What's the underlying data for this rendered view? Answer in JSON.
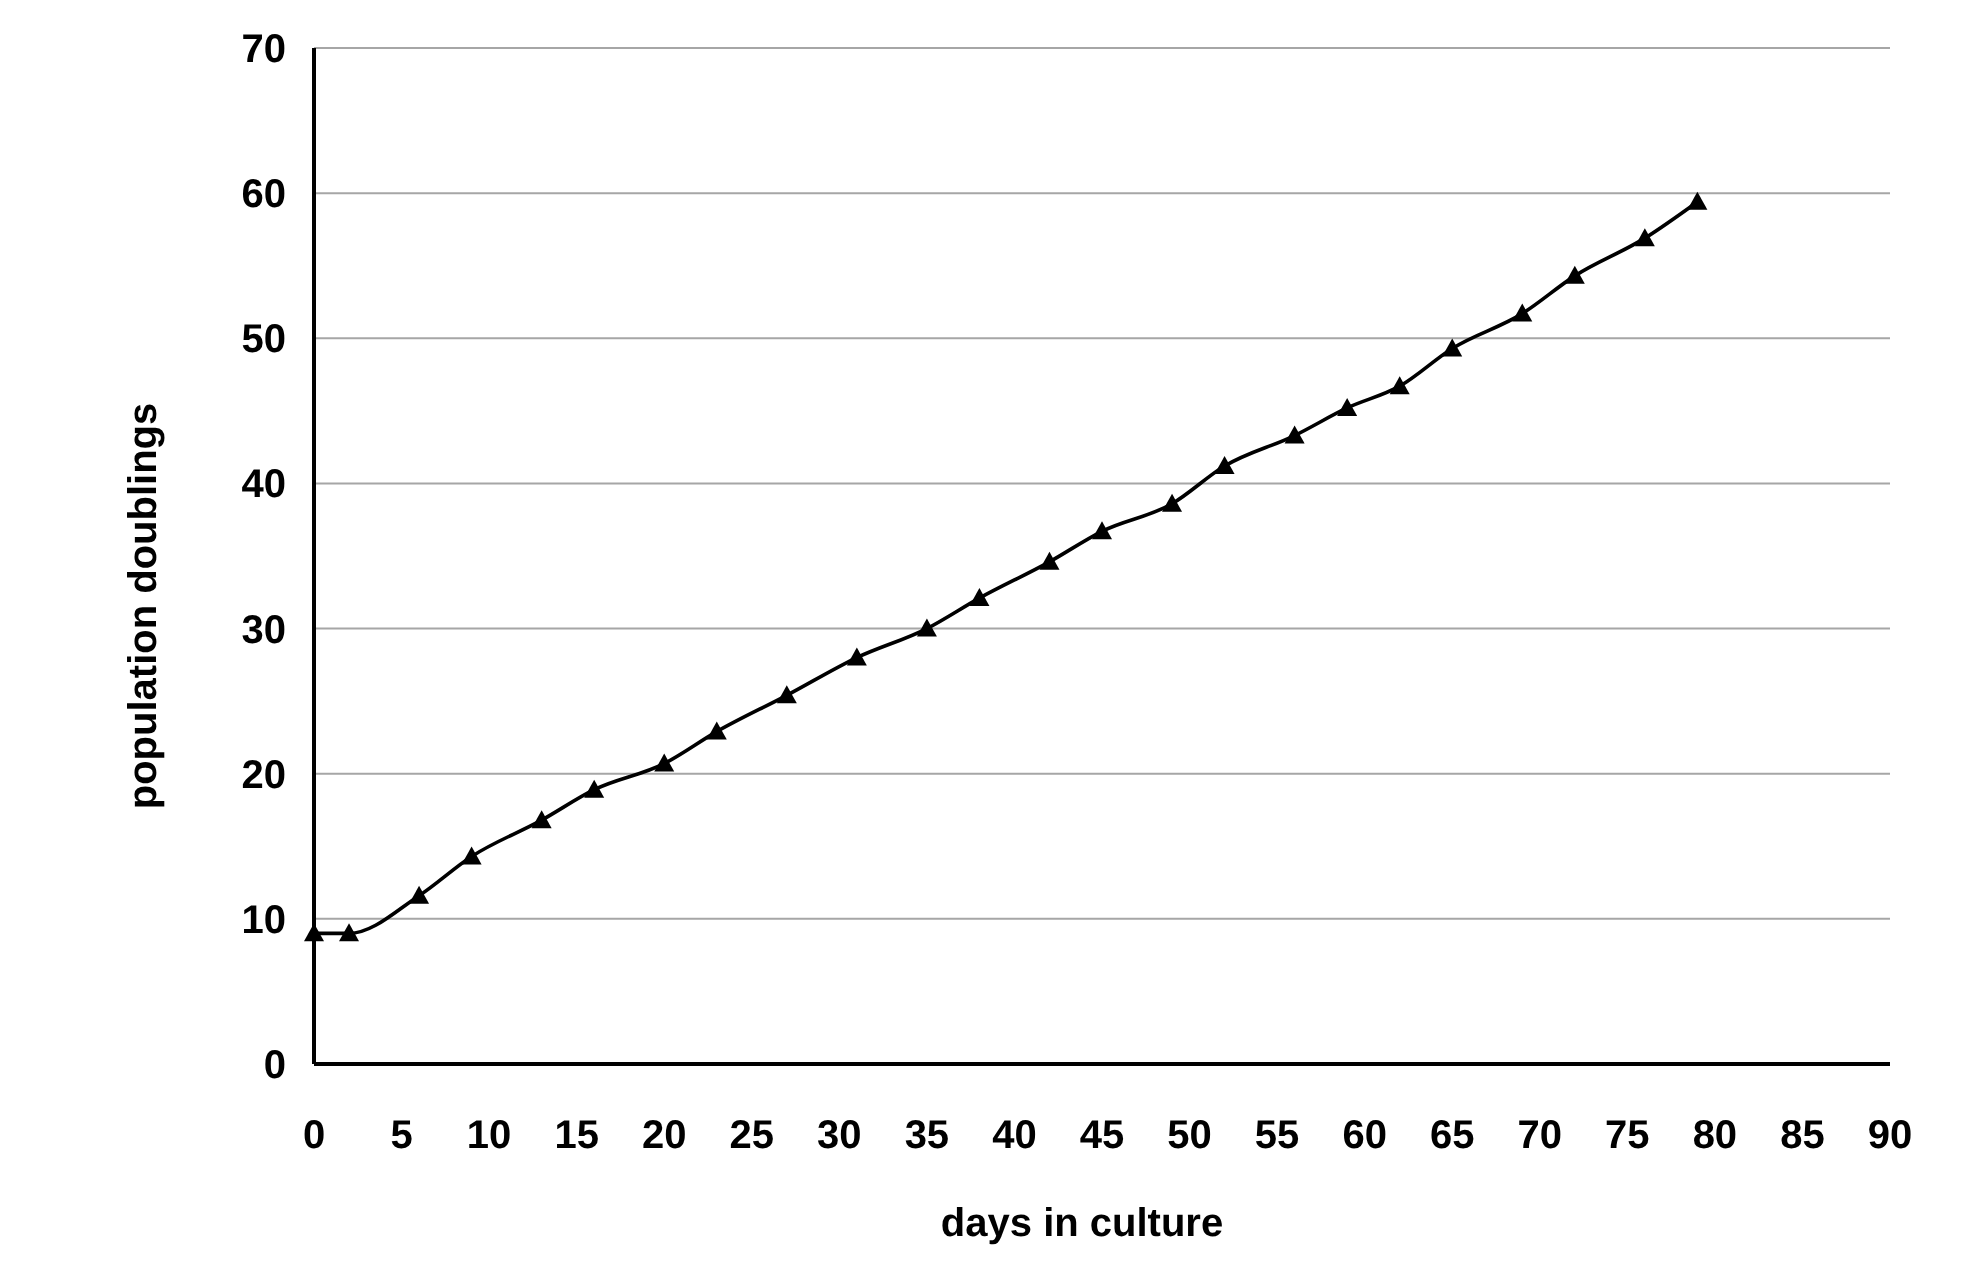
{
  "chart_data": {
    "type": "line",
    "xlabel": "days in culture",
    "ylabel": "population doublings",
    "x": [
      0,
      2,
      6,
      9,
      13,
      16,
      20,
      23,
      27,
      31,
      35,
      38,
      42,
      45,
      49,
      52,
      56,
      59,
      62,
      65,
      69,
      72,
      76,
      79
    ],
    "series": [
      {
        "color": "#000000",
        "values": [
          9,
          9,
          11.6,
          14.3,
          16.8,
          18.9,
          20.7,
          22.9,
          25.4,
          28,
          30,
          32.1,
          34.6,
          36.7,
          38.6,
          41.2,
          43.3,
          45.2,
          46.7,
          49.3,
          51.7,
          54.3,
          56.9,
          59.4
        ]
      }
    ],
    "xlim": [
      0,
      90
    ],
    "xticks": [
      0,
      5,
      10,
      15,
      20,
      25,
      30,
      35,
      40,
      45,
      50,
      55,
      60,
      65,
      70,
      75,
      80,
      85,
      90
    ],
    "ylim": [
      0,
      70
    ],
    "yticks": [
      0,
      10,
      20,
      30,
      40,
      50,
      60,
      70
    ],
    "grid": "y",
    "marker": "triangle",
    "line_style": "solid"
  }
}
